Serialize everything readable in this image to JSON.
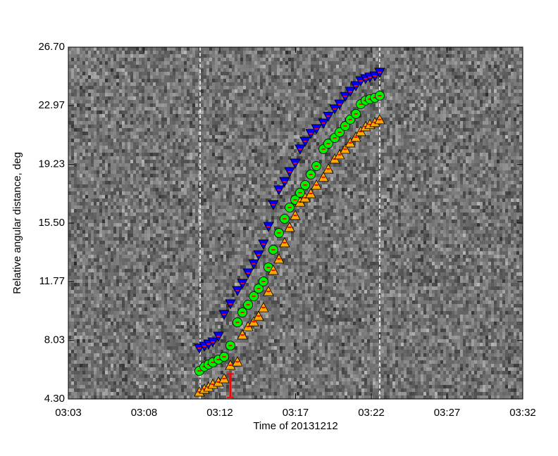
{
  "chart_data": {
    "type": "scatter",
    "x_label": "Time of 20131212",
    "y_label": "Relative angular distance, deg",
    "xlim": [
      3,
      32
    ],
    "xticks": [
      {
        "value": 3,
        "label": "03:03"
      },
      {
        "value": 7.833,
        "label": "03:08"
      },
      {
        "value": 12.667,
        "label": "03:12"
      },
      {
        "value": 17.5,
        "label": "03:17"
      },
      {
        "value": 22.333,
        "label": "03:22"
      },
      {
        "value": 27.167,
        "label": "03:27"
      },
      {
        "value": 32,
        "label": "03:32"
      }
    ],
    "ylim": [
      4.3,
      26.7
    ],
    "yticks": [
      {
        "value": 4.3,
        "label": "4.30"
      },
      {
        "value": 8.03,
        "label": "8.03"
      },
      {
        "value": 11.77,
        "label": "11.77"
      },
      {
        "value": 15.5,
        "label": "15.50"
      },
      {
        "value": 19.23,
        "label": "19.23"
      },
      {
        "value": 22.97,
        "label": "22.97"
      },
      {
        "value": 26.7,
        "label": "26.70"
      }
    ],
    "vlines": [
      11.41,
      22.87
    ],
    "x": [
      11.36,
      11.68,
      11.95,
      12.22,
      12.58,
      12.94,
      13.34,
      13.79,
      14.11,
      14.47,
      14.83,
      15.14,
      15.45,
      15.77,
      16.08,
      16.44,
      16.8,
      17.12,
      17.48,
      17.79,
      18.11,
      18.47,
      18.83,
      19.28,
      19.59,
      20.0,
      20.31,
      20.67,
      20.99,
      21.35,
      21.66,
      21.97,
      22.24,
      22.56,
      22.87
    ],
    "series": [
      {
        "color": "#0000ff",
        "marker": "triangle-down",
        "values": [
          7.53,
          7.66,
          7.79,
          7.93,
          8.29,
          9.68,
          10.35,
          11.2,
          11.65,
          12.32,
          12.9,
          13.48,
          14.16,
          15.28,
          16.67,
          17.61,
          18.14,
          18.77,
          19.31,
          20.21,
          20.7,
          21.2,
          21.5,
          21.86,
          22.3,
          22.76,
          23.07,
          23.56,
          23.88,
          24.24,
          24.55,
          24.69,
          24.78,
          24.86,
          25.09
        ]
      },
      {
        "color": "#00ee00",
        "marker": "circle",
        "values": [
          6.09,
          6.36,
          6.5,
          6.63,
          6.81,
          6.99,
          7.7,
          9.18,
          9.81,
          10.3,
          10.84,
          11.33,
          11.78,
          12.68,
          13.8,
          14.87,
          15.77,
          16.49,
          16.98,
          17.43,
          17.92,
          18.59,
          19.13,
          20.21,
          20.56,
          20.92,
          21.28,
          21.68,
          22.09,
          22.45,
          23.07,
          23.3,
          23.39,
          23.48,
          23.61
        ]
      },
      {
        "color": "#ffaa00",
        "marker": "triangle-up",
        "values": [
          4.75,
          4.93,
          5.06,
          5.24,
          5.38,
          5.6,
          6.45,
          6.67,
          8.38,
          8.91,
          9.22,
          9.58,
          10.12,
          11.15,
          12.5,
          13.22,
          14.25,
          15.23,
          15.99,
          16.84,
          17.11,
          17.38,
          17.92,
          18.42,
          18.95,
          19.58,
          19.85,
          20.21,
          20.61,
          20.97,
          21.33,
          21.64,
          21.78,
          21.91,
          22.09
        ]
      }
    ],
    "error_bar": {
      "x": 13.34,
      "value": 5.15,
      "error": 0.75,
      "color": "#ff0000"
    }
  }
}
